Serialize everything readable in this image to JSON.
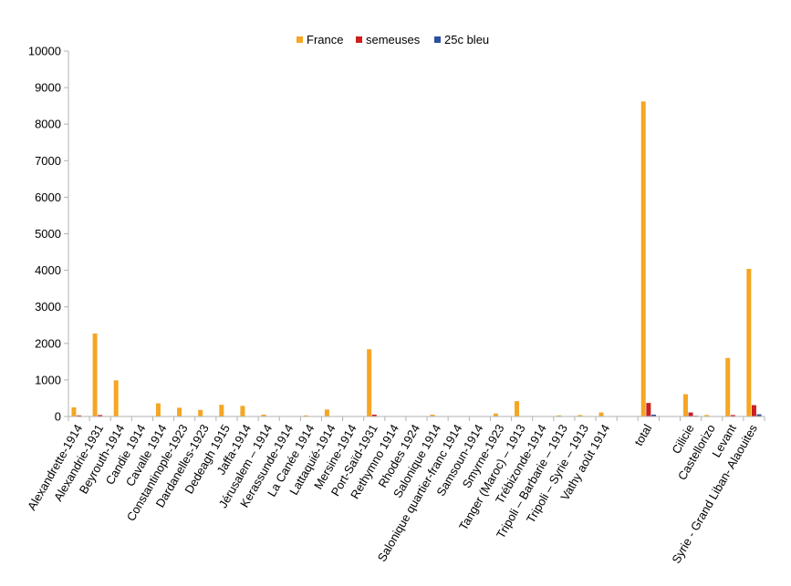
{
  "chart_data": {
    "type": "bar",
    "title": "",
    "xlabel": "",
    "ylabel": "",
    "ylim": [
      0,
      10000
    ],
    "y_ticks": [
      0,
      1000,
      2000,
      3000,
      4000,
      5000,
      6000,
      7000,
      8000,
      9000,
      10000
    ],
    "grid": false,
    "legend_position": "top-center",
    "categories": [
      "Alexandrette-1914",
      "Alexandrie-1931",
      "Beyrouth-1914",
      "Candie 1914",
      "Cavalle 1914",
      "Constantinople-1923",
      "Dardanelles-1923",
      "Dedeagh 1915",
      "Jaffa-1914",
      "Jérusalem – 1914",
      "Kerassunde-1914",
      "La Canée 1914",
      "Lattaquié-1914",
      "Mersine-1914",
      "Port-Saïd-1931",
      "Rethymno 1914",
      "Rhodes 1924",
      "Salonique 1914",
      "Salonique quartier-franc 1914",
      "Samsoun-1914",
      "Smyrne-1923",
      "Tanger (Maroc) – 1913",
      "Trébizonde-1914",
      "Tripoli – Barbarie – 1913",
      "Tripoli – Syrie – 1913",
      "Vathy août 1914",
      "",
      "total",
      "",
      "Cilicie",
      "Castellorizo",
      "Levant",
      "Syrie - Grand Liban- Alaouites"
    ],
    "series": [
      {
        "name": "France",
        "color": "#f5a623",
        "values": [
          250,
          2270,
          990,
          10,
          360,
          240,
          180,
          320,
          290,
          50,
          0,
          30,
          190,
          0,
          1840,
          0,
          0,
          50,
          0,
          10,
          80,
          420,
          0,
          30,
          40,
          110,
          0,
          8620,
          0,
          610,
          40,
          1600,
          4040
        ]
      },
      {
        "name": "semeuses",
        "color": "#cc1f1f",
        "values": [
          30,
          40,
          10,
          0,
          0,
          0,
          0,
          0,
          0,
          0,
          0,
          0,
          0,
          0,
          50,
          0,
          0,
          0,
          0,
          0,
          0,
          0,
          0,
          0,
          0,
          0,
          0,
          370,
          0,
          110,
          0,
          40,
          310
        ]
      },
      {
        "name": "25c bleu",
        "color": "#2e4f9e",
        "values": [
          0,
          0,
          0,
          0,
          0,
          0,
          0,
          0,
          0,
          0,
          0,
          0,
          0,
          0,
          10,
          0,
          0,
          0,
          0,
          0,
          0,
          0,
          0,
          0,
          0,
          0,
          0,
          50,
          0,
          20,
          0,
          10,
          60
        ]
      }
    ]
  }
}
